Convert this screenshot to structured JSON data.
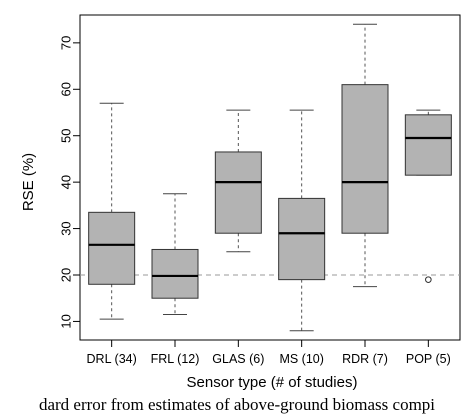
{
  "chart_data": {
    "type": "box",
    "xlabel": "Sensor type (# of studies)",
    "ylabel": "RSE (%)",
    "ylim": [
      6,
      76
    ],
    "yticks": [
      10,
      20,
      30,
      40,
      50,
      60,
      70
    ],
    "reference_line": {
      "y": 20,
      "style": "dashed"
    },
    "box_color": "#b3b3b3",
    "categories": [
      "DRL (34)",
      "FRL (12)",
      "GLAS (6)",
      "MS (10)",
      "RDR (7)",
      "POP (5)"
    ],
    "boxes": [
      {
        "label": "DRL (34)",
        "whisker_low": 10.5,
        "q1": 18,
        "median": 26.5,
        "q3": 33.5,
        "whisker_high": 57,
        "outliers": []
      },
      {
        "label": "FRL (12)",
        "whisker_low": 11.5,
        "q1": 15,
        "median": 19.8,
        "q3": 25.5,
        "whisker_high": 37.5,
        "outliers": []
      },
      {
        "label": "GLAS (6)",
        "whisker_low": 25,
        "q1": 29,
        "median": 40,
        "q3": 46.5,
        "whisker_high": 55.5,
        "outliers": []
      },
      {
        "label": "MS (10)",
        "whisker_low": 8,
        "q1": 19,
        "median": 29,
        "q3": 36.5,
        "whisker_high": 55.5,
        "outliers": []
      },
      {
        "label": "RDR (7)",
        "whisker_low": 17.5,
        "q1": 29,
        "median": 40,
        "q3": 61,
        "whisker_high": 74,
        "outliers": []
      },
      {
        "label": "POP (5)",
        "whisker_low": 41.5,
        "q1": 41.5,
        "median": 49.5,
        "q3": 54.5,
        "whisker_high": 55.5,
        "outliers": [
          19
        ]
      }
    ]
  },
  "caption": "dard error from estimates of above-ground biomass compi"
}
